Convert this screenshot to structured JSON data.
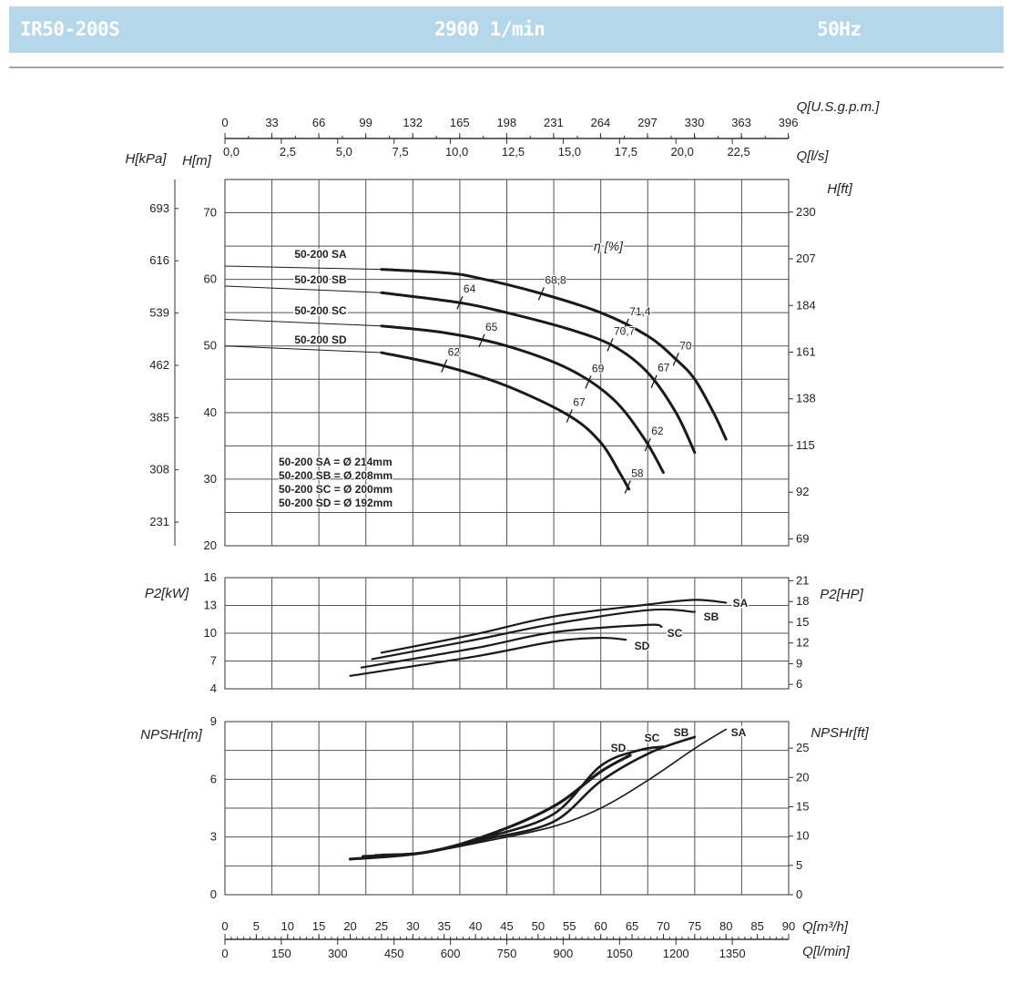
{
  "header": {
    "model": "IR50-200S",
    "speed": "2900 1/min",
    "frequency": "50Hz",
    "background": "#b5d7ea"
  },
  "chart_data": [
    {
      "type": "line",
      "title": "",
      "xlabel": "Q[m³/h]",
      "x_secondary_labels": {
        "gpm": "Q[U.S.g.p.m.]",
        "ls": "Q[l/s]",
        "lmin": "Q[l/min]"
      },
      "xlim": [
        0,
        90
      ],
      "gpm_ticks": [
        "0",
        "33",
        "66",
        "99",
        "132",
        "165",
        "198",
        "231",
        "264",
        "297",
        "330",
        "363",
        "396"
      ],
      "ls_ticks": [
        "0,0",
        "2,5",
        "5,0",
        "7,5",
        "10,0",
        "12,5",
        "15,0",
        "17,5",
        "20,0",
        "22,5"
      ],
      "ylabel": "H[m]",
      "ylabel_kpa": "H[kPa]",
      "ylabel_ft": "H[ft]",
      "ylim": [
        20,
        75
      ],
      "yticks": [
        "20",
        "30",
        "40",
        "50",
        "60",
        "70"
      ],
      "kpa_ticks": [
        "231",
        "308",
        "385",
        "462",
        "539",
        "616",
        "693"
      ],
      "ft_ticks": [
        "69",
        "92",
        "115",
        "138",
        "161",
        "184",
        "207",
        "230"
      ],
      "efficiency_label": "η [%]",
      "grid": true,
      "series": [
        {
          "name": "50-200 SA",
          "thin": [
            [
              0,
              62
            ],
            [
              25,
              61.5
            ]
          ],
          "points": [
            [
              25,
              61.5
            ],
            [
              35,
              61
            ],
            [
              40,
              60.3
            ],
            [
              50,
              58
            ],
            [
              60,
              55
            ],
            [
              67.5,
              51.5
            ],
            [
              72,
              48
            ],
            [
              75,
              45
            ],
            [
              78,
              40
            ],
            [
              80,
              36
            ]
          ],
          "eta": [
            {
              "q": 50.5,
              "label": "68,8"
            },
            {
              "q": 64,
              "label": "71,4"
            },
            {
              "q": 72,
              "label": "70"
            }
          ]
        },
        {
          "name": "50-200 SB",
          "thin": [
            [
              0,
              59
            ],
            [
              25,
              58
            ]
          ],
          "points": [
            [
              25,
              58
            ],
            [
              37.5,
              56.5
            ],
            [
              45,
              55
            ],
            [
              55,
              52.5
            ],
            [
              62,
              50
            ],
            [
              67.5,
              46
            ],
            [
              72,
              40
            ],
            [
              75,
              34
            ]
          ],
          "eta": [
            {
              "q": 37.5,
              "label": "64"
            },
            {
              "q": 61.5,
              "label": "70,7"
            },
            {
              "q": 68.5,
              "label": "67"
            }
          ]
        },
        {
          "name": "50-200 SC",
          "thin": [
            [
              0,
              54
            ],
            [
              25,
              53
            ]
          ],
          "points": [
            [
              25,
              53
            ],
            [
              35,
              52
            ],
            [
              45,
              50
            ],
            [
              55,
              46.5
            ],
            [
              62,
              42
            ],
            [
              67,
              36
            ],
            [
              70,
              31
            ]
          ],
          "eta": [
            {
              "q": 41,
              "label": "65"
            },
            {
              "q": 58,
              "label": "69"
            },
            {
              "q": 67.5,
              "label": "62"
            }
          ]
        },
        {
          "name": "50-200 SD",
          "thin": [
            [
              0,
              50
            ],
            [
              25,
              49
            ]
          ],
          "points": [
            [
              25,
              49
            ],
            [
              35,
              47
            ],
            [
              45,
              44
            ],
            [
              55,
              39.5
            ],
            [
              60,
              35.5
            ],
            [
              63,
              31
            ],
            [
              64.5,
              28.5
            ]
          ],
          "eta": [
            {
              "q": 35,
              "label": "62"
            },
            {
              "q": 55,
              "label": "67"
            },
            {
              "q": 64.3,
              "label": "58"
            }
          ]
        }
      ],
      "legend": [
        "50-200 SA = Ø 214mm",
        "50-200 SB = Ø 208mm",
        "50-200 SC = Ø 200mm",
        "50-200 SD = Ø 192mm"
      ]
    },
    {
      "type": "line",
      "ylabel": "P2[kW]",
      "ylabel_right": "P2[HP]",
      "ylim": [
        4,
        16
      ],
      "yticks": [
        "4",
        "7",
        "10",
        "13",
        "16"
      ],
      "hp_ticks": [
        "6",
        "9",
        "12",
        "15",
        "18",
        "21"
      ],
      "grid": true,
      "series": [
        {
          "name": "SA",
          "points": [
            [
              25,
              7.9
            ],
            [
              40,
              9.9
            ],
            [
              52.5,
              11.8
            ],
            [
              67.5,
              13.1
            ],
            [
              75,
              13.6
            ],
            [
              80,
              13.3
            ]
          ]
        },
        {
          "name": "SB",
          "points": [
            [
              23.5,
              7.2
            ],
            [
              40,
              9.3
            ],
            [
              52.5,
              11.0
            ],
            [
              67.7,
              12.5
            ],
            [
              75,
              12.3
            ]
          ]
        },
        {
          "name": "SC",
          "points": [
            [
              21.8,
              6.3
            ],
            [
              40,
              8.4
            ],
            [
              52.5,
              10.1
            ],
            [
              67.3,
              10.9
            ],
            [
              69.7,
              10.7
            ]
          ]
        },
        {
          "name": "SD",
          "points": [
            [
              20,
              5.4
            ],
            [
              40,
              7.5
            ],
            [
              52.5,
              9.1
            ],
            [
              60,
              9.5
            ],
            [
              64,
              9.3
            ]
          ]
        }
      ]
    },
    {
      "type": "line",
      "ylabel": "NPSHr[m]",
      "ylabel_right": "NPSHr[ft]",
      "ylim": [
        0,
        9
      ],
      "yticks": [
        "0",
        "3",
        "6",
        "9"
      ],
      "ft_ticks": [
        "0",
        "5",
        "10",
        "15",
        "20",
        "25"
      ],
      "grid": true,
      "series": [
        {
          "name": "SA",
          "points": [
            [
              25,
              2.1
            ],
            [
              32,
              2.2
            ],
            [
              42,
              2.8
            ],
            [
              52.5,
              3.55
            ],
            [
              60,
              4.5
            ],
            [
              67.3,
              5.9
            ],
            [
              75,
              7.6
            ],
            [
              80,
              8.6
            ]
          ]
        },
        {
          "name": "SB",
          "points": [
            [
              24,
              2.05
            ],
            [
              32,
              2.2
            ],
            [
              42,
              2.9
            ],
            [
              52.5,
              3.8
            ],
            [
              60,
              5.9
            ],
            [
              68,
              7.4
            ],
            [
              75,
              8.2
            ]
          ]
        },
        {
          "name": "SC",
          "points": [
            [
              22,
              2.0
            ],
            [
              32,
              2.2
            ],
            [
              42,
              3.0
            ],
            [
              52.5,
              4.2
            ],
            [
              60,
              6.7
            ],
            [
              66,
              7.5
            ],
            [
              70,
              7.7
            ]
          ]
        },
        {
          "name": "SD",
          "points": [
            [
              20,
              1.85
            ],
            [
              32,
              2.2
            ],
            [
              42,
              3.1
            ],
            [
              52.5,
              4.6
            ],
            [
              60,
              6.4
            ],
            [
              64.7,
              7.25
            ]
          ]
        }
      ]
    }
  ],
  "bottom_axis": {
    "m3h_label": "Q[m³/h]",
    "m3h_ticks": [
      "0",
      "5",
      "10",
      "15",
      "20",
      "25",
      "30",
      "35",
      "40",
      "45",
      "50",
      "55",
      "60",
      "65",
      "70",
      "75",
      "80",
      "85",
      "90"
    ],
    "lmin_label": "Q[l/min]",
    "lmin_ticks": [
      "0",
      "150",
      "300",
      "450",
      "600",
      "750",
      "900",
      "1050",
      "1200",
      "1350"
    ]
  }
}
